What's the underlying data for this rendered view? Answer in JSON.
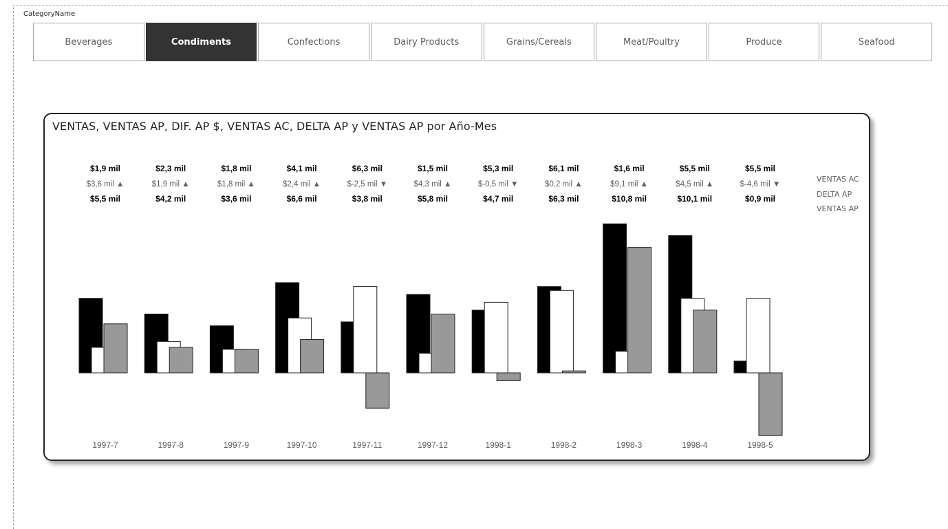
{
  "slicer": {
    "title": "CategoryName",
    "items": [
      "Beverages",
      "Condiments",
      "Confections",
      "Dairy Products",
      "Grains/Cereals",
      "Meat/Poultry",
      "Produce",
      "Seafood"
    ],
    "selected": "Condiments"
  },
  "chart_data": {
    "type": "bar",
    "title": "VENTAS, VENTAS AP, DIF. AP $, VENTAS AC, DELTA AP y VENTAS AP por Año-Mes",
    "categories": [
      "1997-7",
      "1997-8",
      "1997-9",
      "1997-10",
      "1997-11",
      "1997-12",
      "1998-1",
      "1998-2",
      "1998-3",
      "1998-4",
      "1998-5"
    ],
    "series": [
      {
        "name": "VENTAS",
        "color": "#000000",
        "values": [
          1.9,
          1.5,
          1.2,
          2.3,
          1.3,
          2.0,
          1.6,
          2.2,
          3.8,
          3.5,
          0.3
        ]
      },
      {
        "name": "VENTAS AP",
        "color": "#ffffff",
        "values": [
          0.65,
          0.8,
          0.6,
          1.4,
          2.2,
          0.5,
          1.8,
          2.1,
          0.55,
          1.9,
          1.9
        ]
      },
      {
        "name": "DIF. AP $",
        "color": "#999999",
        "values": [
          1.25,
          0.65,
          0.6,
          0.85,
          -0.9,
          1.5,
          -0.2,
          0.05,
          3.2,
          1.6,
          -1.6
        ]
      }
    ],
    "labels": {
      "row1": [
        "$1,9 mil",
        "$2,3 mil",
        "$1,8 mil",
        "$4,1 mil",
        "$6,3 mil",
        "$1,5 mil",
        "$5,3 mil",
        "$6,1 mil",
        "$1,6 mil",
        "$5,5 mil",
        "$5,5 mil"
      ],
      "row2": [
        "$3,6 mil",
        "$1,9 mil",
        "$1,8 mil",
        "$2,4 mil",
        "$-2,5 mil",
        "$4,3 mil",
        "$-0,5 mil",
        "$0,2 mil",
        "$9,1 mil",
        "$4,5 mil",
        "$-4,6 mil"
      ],
      "row2_dir": [
        "up",
        "up",
        "up",
        "up",
        "down",
        "up",
        "down",
        "up",
        "up",
        "up",
        "down"
      ],
      "row3": [
        "$5,5 mil",
        "$4,2 mil",
        "$3,6 mil",
        "$6,6 mil",
        "$3,8 mil",
        "$5,8 mil",
        "$4,7 mil",
        "$6,3 mil",
        "$10,8 mil",
        "$10,1 mil",
        "$0,9 mil"
      ]
    },
    "legend": [
      "VENTAS AC",
      "DELTA AP",
      "VENTAS AP"
    ],
    "legend_position": "right",
    "grid": false
  }
}
